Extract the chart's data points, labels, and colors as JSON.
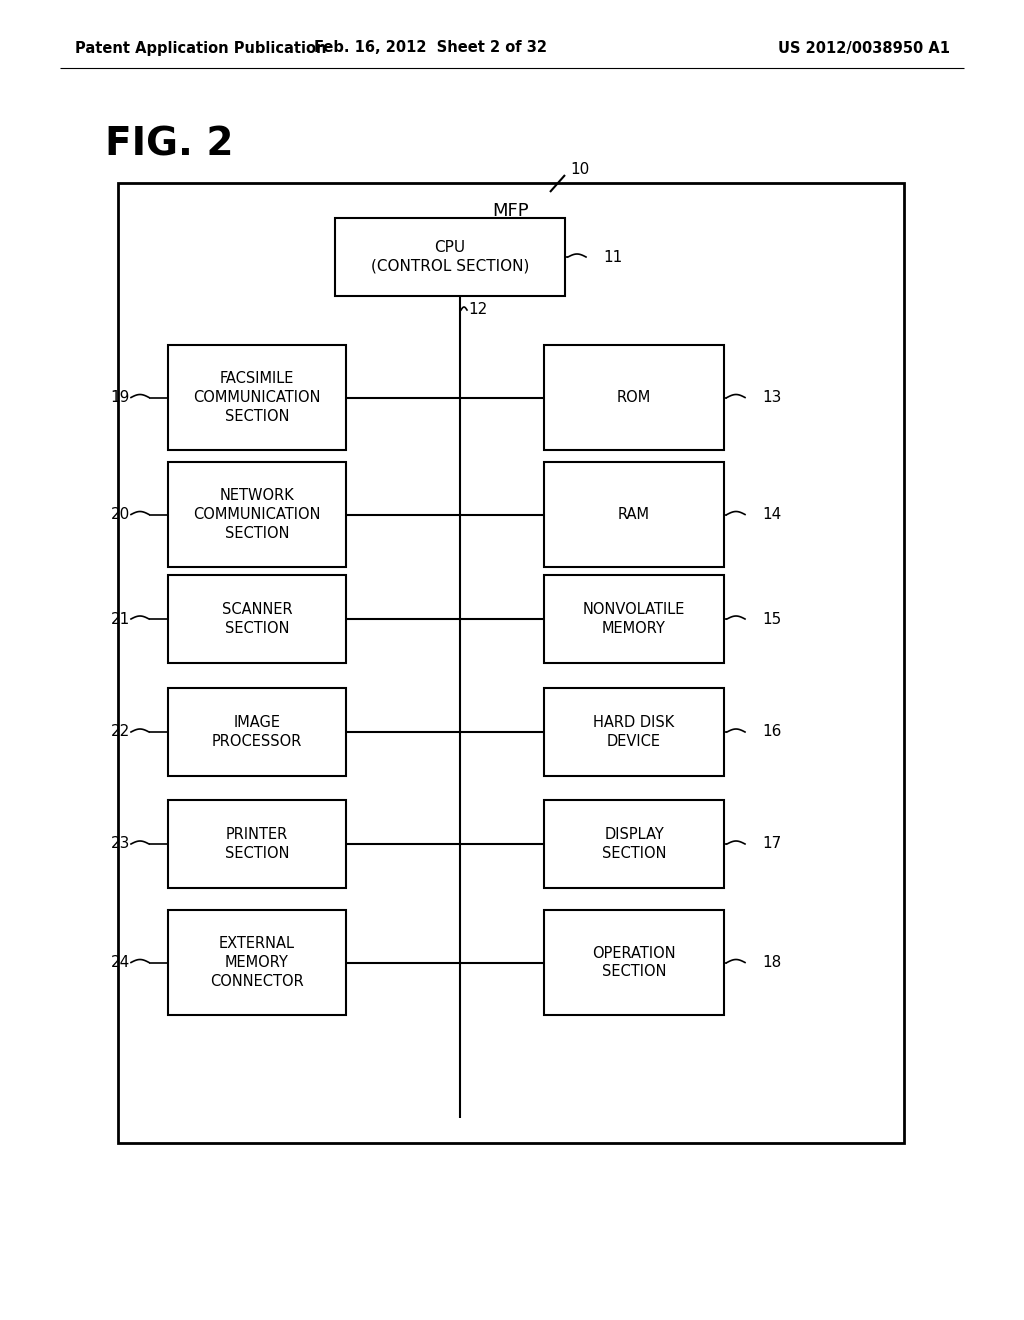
{
  "header_left": "Patent Application Publication",
  "header_mid": "Feb. 16, 2012  Sheet 2 of 32",
  "header_right": "US 2012/0038950 A1",
  "fig_label": "FIG. 2",
  "outer_box_label": "MFP",
  "cpu_box_text": "CPU\n(CONTROL SECTION)",
  "left_boxes": [
    {
      "text": "FACSIMILE\nCOMMUNICATION\nSECTION",
      "num": "19"
    },
    {
      "text": "NETWORK\nCOMMUNICATION\nSECTION",
      "num": "20"
    },
    {
      "text": "SCANNER\nSECTION",
      "num": "21"
    },
    {
      "text": "IMAGE\nPROCESSOR",
      "num": "22"
    },
    {
      "text": "PRINTER\nSECTION",
      "num": "23"
    },
    {
      "text": "EXTERNAL\nMEMORY\nCONNECTOR",
      "num": "24"
    }
  ],
  "right_boxes": [
    {
      "text": "ROM",
      "num": "13"
    },
    {
      "text": "RAM",
      "num": "14"
    },
    {
      "text": "NONVOLATILE\nMEMORY",
      "num": "15"
    },
    {
      "text": "HARD DISK\nDEVICE",
      "num": "16"
    },
    {
      "text": "DISPLAY\nSECTION",
      "num": "17"
    },
    {
      "text": "OPERATION\nSECTION",
      "num": "18"
    }
  ],
  "bg_color": "#ffffff",
  "text_color": "#000000",
  "line_color": "#000000"
}
